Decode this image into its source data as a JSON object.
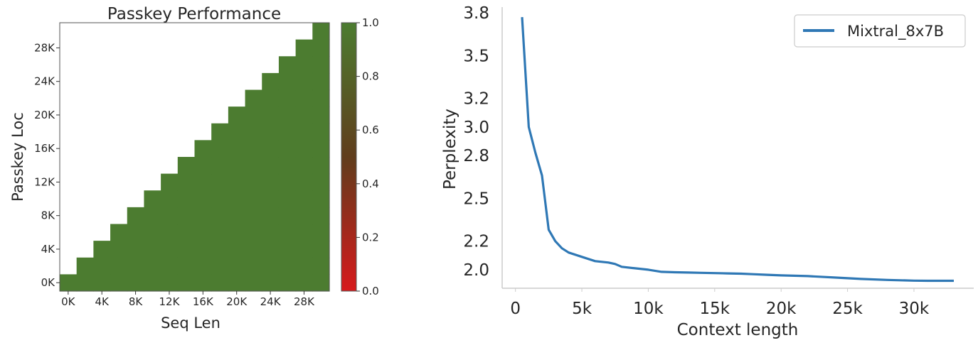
{
  "chart_data": [
    {
      "type": "heatmap",
      "title": "Passkey Performance",
      "xlabel": "Seq Len",
      "ylabel": "Passkey Loc",
      "x_ticks": [
        "0K",
        "4K",
        "8K",
        "12K",
        "16K",
        "20K",
        "24K",
        "28K"
      ],
      "y_ticks": [
        "0K",
        "4K",
        "8K",
        "12K",
        "16K",
        "20K",
        "24K",
        "28K"
      ],
      "x_bins": 16,
      "y_bins": 16,
      "cell_value": 1.0,
      "note_filled": "cells with passkey location <= sequence length are filled (accuracy 1.0); others are empty",
      "colorbar": {
        "ticks": [
          "0.0",
          "0.2",
          "0.4",
          "0.6",
          "0.8",
          "1.0"
        ],
        "range": [
          0.0,
          1.0
        ],
        "color_low": "#d7191c",
        "color_mid": "#603d1c",
        "color_high": "#4c7c30"
      }
    },
    {
      "type": "line",
      "xlabel": "Context length",
      "ylabel": "Perplexity",
      "x_ticks": [
        "0",
        "5k",
        "10k",
        "15k",
        "20k",
        "25k",
        "30k"
      ],
      "y_ticks": [
        "2.0",
        "2.2",
        "2.5",
        "2.8",
        "3.0",
        "3.2",
        "3.5",
        "3.8"
      ],
      "xlim": [
        -1000,
        34500
      ],
      "ylim": [
        1.87,
        3.84
      ],
      "legend_position": "top-right",
      "series": [
        {
          "name": "Mixtral_8x7B",
          "color": "#2f78b5",
          "x": [
            500,
            1000,
            1500,
            2000,
            2500,
            3000,
            3500,
            4000,
            5000,
            6000,
            7000,
            7500,
            8000,
            9000,
            10000,
            11000,
            12000,
            13000,
            14000,
            15000,
            16000,
            17000,
            18000,
            19000,
            20000,
            22000,
            24000,
            26000,
            28000,
            30000,
            31000,
            33000
          ],
          "y": [
            3.77,
            3.0,
            2.82,
            2.66,
            2.28,
            2.2,
            2.15,
            2.12,
            2.09,
            2.06,
            2.05,
            2.04,
            2.02,
            2.01,
            2.0,
            1.985,
            1.982,
            1.98,
            1.978,
            1.976,
            1.974,
            1.972,
            1.968,
            1.964,
            1.96,
            1.955,
            1.945,
            1.935,
            1.928,
            1.923,
            1.922,
            1.922
          ]
        }
      ]
    }
  ]
}
